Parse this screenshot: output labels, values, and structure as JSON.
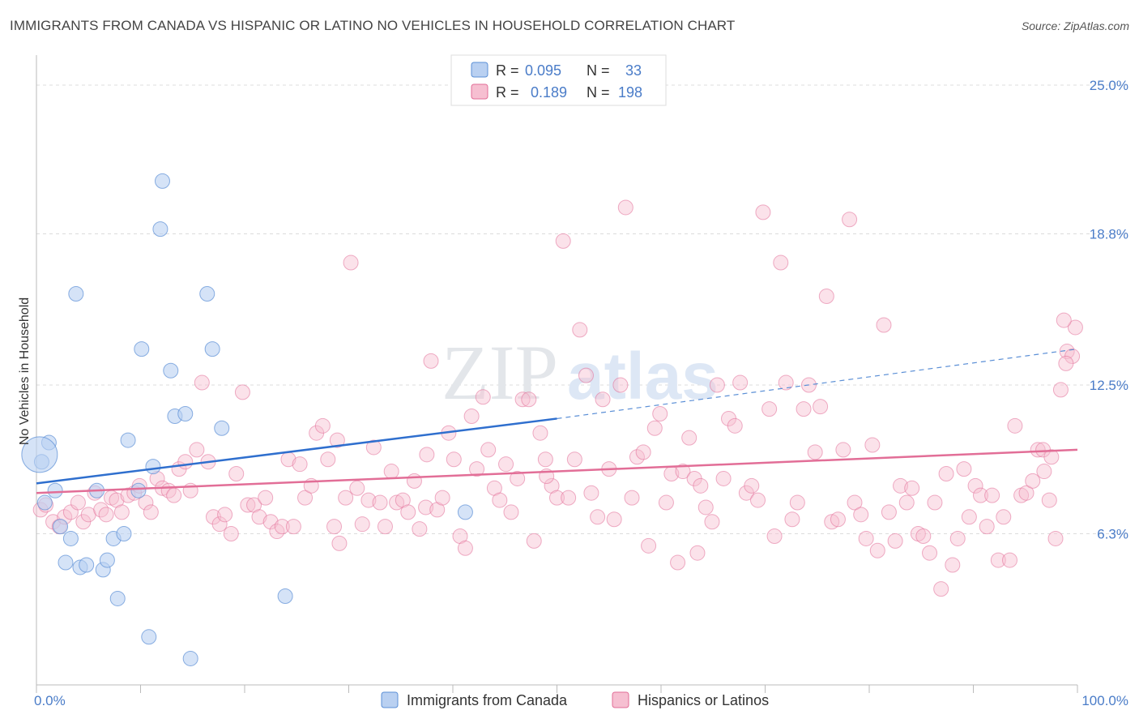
{
  "title": "IMMIGRANTS FROM CANADA VS HISPANIC OR LATINO NO VEHICLES IN HOUSEHOLD CORRELATION CHART",
  "source": "Source: ZipAtlas.com",
  "watermark": {
    "zip": "ZIP",
    "atlas": "atlas"
  },
  "colors": {
    "blue": "#5b8fd6",
    "blue_fill": "#b9d0f1",
    "pink": "#e26e97",
    "pink_fill": "#f6bfd1",
    "tick": "#4a7cc8"
  },
  "chart_data": {
    "type": "scatter",
    "xlabel": "",
    "ylabel": "No Vehicles in Household",
    "xlim": [
      0,
      100
    ],
    "ylim": [
      0,
      26.25
    ],
    "x_tick_labels": [
      "0.0%",
      "100.0%"
    ],
    "y_ticks": [
      6.3,
      12.5,
      18.8,
      25.0
    ],
    "y_tick_labels": [
      "6.3%",
      "12.5%",
      "18.8%",
      "25.0%"
    ],
    "grid": true,
    "legend": {
      "placement": "top-center",
      "rows": [
        {
          "r_label": "R =",
          "r_value": "0.095",
          "n_label": "N =",
          "n_value": "33"
        },
        {
          "r_label": "R =",
          "r_value": "0.189",
          "n_label": "N =",
          "n_value": "198"
        }
      ]
    },
    "series": [
      {
        "name": "Immigrants from Canada",
        "trend": {
          "x0": 0,
          "y0": 8.4,
          "x1": 50,
          "y1": 11.1,
          "dash_to": 100,
          "dash_y": 14.0
        },
        "points": [
          [
            0.5,
            9.3
          ],
          [
            1.2,
            10.1
          ],
          [
            0.8,
            7.6
          ],
          [
            1.8,
            8.1
          ],
          [
            2.3,
            6.6
          ],
          [
            3.3,
            6.1
          ],
          [
            2.8,
            5.1
          ],
          [
            4.2,
            4.9
          ],
          [
            4.8,
            5.0
          ],
          [
            6.4,
            4.8
          ],
          [
            6.8,
            5.2
          ],
          [
            3.8,
            16.3
          ],
          [
            5.8,
            8.1
          ],
          [
            7.4,
            6.1
          ],
          [
            7.8,
            3.6
          ],
          [
            8.4,
            6.3
          ],
          [
            8.8,
            10.2
          ],
          [
            9.8,
            8.1
          ],
          [
            10.1,
            14.0
          ],
          [
            10.8,
            2.0
          ],
          [
            11.2,
            9.1
          ],
          [
            12.1,
            21.0
          ],
          [
            11.9,
            19.0
          ],
          [
            12.9,
            13.1
          ],
          [
            13.3,
            11.2
          ],
          [
            14.3,
            11.3
          ],
          [
            14.8,
            1.1
          ],
          [
            16.4,
            16.3
          ],
          [
            16.9,
            14.0
          ],
          [
            17.8,
            10.7
          ],
          [
            23.9,
            3.7
          ],
          [
            41.2,
            7.2
          ],
          [
            0.3,
            9.6
          ]
        ],
        "big_point_index": 32
      },
      {
        "name": "Hispanics or Latinos",
        "trend": {
          "x0": 0,
          "y0": 8.0,
          "x1": 100,
          "y1": 9.8
        },
        "points": [
          [
            0.4,
            7.3
          ],
          [
            0.9,
            7.5
          ],
          [
            1.6,
            6.8
          ],
          [
            2.2,
            6.6
          ],
          [
            2.7,
            7.0
          ],
          [
            3.3,
            7.2
          ],
          [
            4.0,
            7.6
          ],
          [
            4.5,
            6.8
          ],
          [
            5.0,
            7.1
          ],
          [
            5.6,
            8.0
          ],
          [
            6.2,
            7.3
          ],
          [
            6.7,
            7.1
          ],
          [
            7.2,
            7.8
          ],
          [
            7.7,
            7.7
          ],
          [
            8.2,
            7.2
          ],
          [
            8.8,
            7.9
          ],
          [
            9.4,
            8.0
          ],
          [
            9.9,
            8.3
          ],
          [
            10.5,
            7.6
          ],
          [
            11.0,
            7.2
          ],
          [
            11.6,
            8.6
          ],
          [
            12.1,
            8.2
          ],
          [
            12.7,
            8.1
          ],
          [
            13.2,
            7.9
          ],
          [
            13.7,
            9.0
          ],
          [
            14.3,
            9.3
          ],
          [
            14.8,
            8.1
          ],
          [
            15.4,
            9.8
          ],
          [
            15.9,
            12.6
          ],
          [
            16.5,
            9.3
          ],
          [
            17.0,
            7.0
          ],
          [
            17.6,
            6.7
          ],
          [
            18.1,
            7.1
          ],
          [
            18.7,
            6.3
          ],
          [
            19.2,
            8.8
          ],
          [
            19.8,
            12.2
          ],
          [
            20.3,
            7.5
          ],
          [
            20.9,
            7.5
          ],
          [
            21.4,
            7.0
          ],
          [
            22.0,
            7.8
          ],
          [
            22.5,
            6.8
          ],
          [
            23.1,
            6.4
          ],
          [
            23.6,
            6.6
          ],
          [
            24.2,
            9.4
          ],
          [
            24.7,
            6.6
          ],
          [
            25.3,
            9.2
          ],
          [
            25.8,
            7.8
          ],
          [
            26.4,
            8.3
          ],
          [
            26.9,
            10.5
          ],
          [
            27.5,
            10.8
          ],
          [
            28.0,
            9.4
          ],
          [
            28.6,
            6.6
          ],
          [
            29.1,
            5.9
          ],
          [
            29.7,
            7.8
          ],
          [
            30.2,
            17.6
          ],
          [
            30.8,
            8.2
          ],
          [
            31.3,
            6.7
          ],
          [
            31.9,
            7.7
          ],
          [
            32.4,
            9.9
          ],
          [
            33.0,
            7.6
          ],
          [
            33.5,
            6.6
          ],
          [
            34.1,
            8.9
          ],
          [
            34.6,
            7.6
          ],
          [
            35.2,
            7.7
          ],
          [
            35.7,
            7.2
          ],
          [
            36.3,
            8.5
          ],
          [
            36.8,
            6.5
          ],
          [
            37.4,
            7.4
          ],
          [
            37.9,
            13.5
          ],
          [
            38.5,
            7.3
          ],
          [
            39.0,
            7.8
          ],
          [
            39.6,
            10.5
          ],
          [
            40.1,
            9.4
          ],
          [
            40.7,
            6.2
          ],
          [
            41.2,
            5.7
          ],
          [
            41.8,
            11.2
          ],
          [
            42.3,
            9.0
          ],
          [
            42.9,
            12.0
          ],
          [
            43.4,
            9.8
          ],
          [
            44.0,
            8.2
          ],
          [
            44.5,
            7.7
          ],
          [
            45.1,
            9.2
          ],
          [
            45.6,
            7.2
          ],
          [
            46.2,
            8.6
          ],
          [
            46.7,
            11.9
          ],
          [
            47.3,
            11.9
          ],
          [
            47.8,
            6.0
          ],
          [
            48.4,
            10.5
          ],
          [
            48.9,
            9.4
          ],
          [
            49.5,
            8.3
          ],
          [
            50.0,
            7.8
          ],
          [
            50.6,
            18.5
          ],
          [
            51.1,
            7.8
          ],
          [
            51.7,
            9.4
          ],
          [
            52.2,
            14.8
          ],
          [
            52.8,
            12.9
          ],
          [
            53.3,
            8.0
          ],
          [
            53.9,
            7.0
          ],
          [
            54.4,
            11.9
          ],
          [
            55.0,
            9.0
          ],
          [
            55.5,
            6.9
          ],
          [
            56.1,
            12.5
          ],
          [
            56.6,
            19.9
          ],
          [
            57.2,
            7.8
          ],
          [
            57.7,
            9.5
          ],
          [
            58.3,
            9.7
          ],
          [
            58.8,
            5.8
          ],
          [
            59.4,
            10.7
          ],
          [
            59.9,
            11.3
          ],
          [
            60.5,
            7.6
          ],
          [
            61.0,
            8.8
          ],
          [
            61.6,
            5.1
          ],
          [
            62.1,
            8.9
          ],
          [
            62.7,
            10.3
          ],
          [
            63.2,
            8.6
          ],
          [
            63.8,
            8.3
          ],
          [
            64.3,
            7.4
          ],
          [
            64.9,
            6.8
          ],
          [
            65.4,
            12.5
          ],
          [
            66.0,
            8.6
          ],
          [
            66.5,
            11.1
          ],
          [
            67.1,
            10.8
          ],
          [
            67.6,
            12.6
          ],
          [
            68.2,
            8.0
          ],
          [
            68.7,
            8.3
          ],
          [
            69.3,
            7.7
          ],
          [
            69.8,
            19.7
          ],
          [
            70.4,
            11.5
          ],
          [
            70.9,
            6.2
          ],
          [
            71.5,
            17.6
          ],
          [
            72.0,
            12.6
          ],
          [
            72.6,
            6.9
          ],
          [
            73.1,
            7.6
          ],
          [
            73.7,
            11.5
          ],
          [
            74.2,
            12.5
          ],
          [
            74.8,
            9.7
          ],
          [
            75.3,
            11.6
          ],
          [
            75.9,
            16.2
          ],
          [
            76.4,
            6.8
          ],
          [
            77.0,
            6.9
          ],
          [
            77.5,
            9.8
          ],
          [
            78.1,
            19.4
          ],
          [
            78.6,
            7.6
          ],
          [
            79.2,
            7.1
          ],
          [
            79.7,
            6.1
          ],
          [
            80.3,
            10.0
          ],
          [
            80.8,
            5.6
          ],
          [
            81.4,
            15.0
          ],
          [
            81.9,
            7.2
          ],
          [
            82.5,
            6.0
          ],
          [
            83.0,
            8.3
          ],
          [
            83.6,
            7.6
          ],
          [
            84.1,
            8.2
          ],
          [
            84.7,
            6.3
          ],
          [
            85.2,
            6.2
          ],
          [
            85.8,
            5.5
          ],
          [
            86.3,
            7.6
          ],
          [
            86.9,
            4.0
          ],
          [
            87.4,
            8.8
          ],
          [
            88.0,
            5.0
          ],
          [
            88.5,
            6.1
          ],
          [
            89.1,
            9.0
          ],
          [
            89.6,
            7.0
          ],
          [
            90.2,
            8.3
          ],
          [
            90.7,
            7.9
          ],
          [
            91.3,
            6.6
          ],
          [
            91.8,
            7.9
          ],
          [
            92.4,
            5.2
          ],
          [
            92.9,
            7.0
          ],
          [
            93.5,
            5.2
          ],
          [
            94.0,
            10.8
          ],
          [
            94.6,
            7.9
          ],
          [
            95.1,
            8.0
          ],
          [
            95.7,
            8.5
          ],
          [
            96.2,
            9.8
          ],
          [
            96.8,
            8.9
          ],
          [
            97.3,
            7.7
          ],
          [
            97.9,
            6.1
          ],
          [
            98.4,
            12.3
          ],
          [
            99.0,
            13.9
          ],
          [
            99.5,
            13.7
          ],
          [
            98.9,
            13.4
          ],
          [
            99.8,
            14.9
          ],
          [
            98.7,
            15.2
          ],
          [
            96.7,
            9.8
          ],
          [
            97.5,
            9.5
          ],
          [
            63.5,
            5.5
          ],
          [
            37.5,
            9.6
          ],
          [
            49.0,
            8.7
          ],
          [
            28.9,
            10.2
          ]
        ]
      }
    ]
  },
  "bottom_legend": {
    "items": [
      {
        "label": "Immigrants from Canada"
      },
      {
        "label": "Hispanics or Latinos"
      }
    ]
  }
}
